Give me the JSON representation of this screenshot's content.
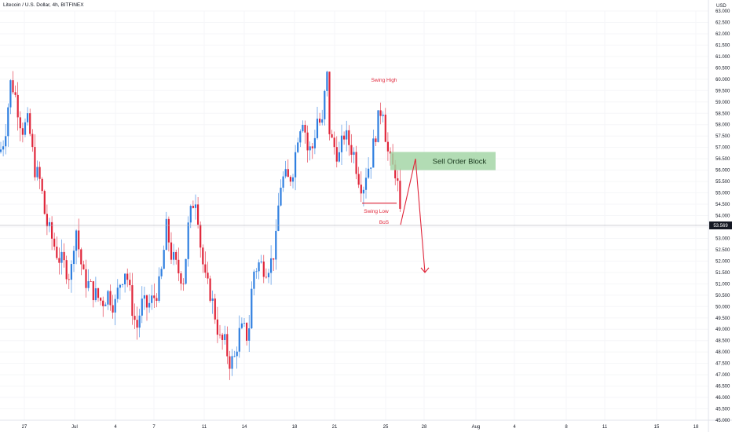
{
  "header": {
    "title": "Litecoin / U.S. Dollar, 4h, BITFINEX"
  },
  "chart_data": {
    "type": "candlestick",
    "y_axis": {
      "unit": "USD",
      "min": 45.0,
      "max": 63.0,
      "step": 0.5,
      "tick_labels": [
        "45.000",
        "45.500",
        "46.000",
        "46.500",
        "47.000",
        "47.500",
        "48.000",
        "48.500",
        "49.000",
        "49.500",
        "50.000",
        "50.500",
        "51.000",
        "51.500",
        "52.000",
        "52.500",
        "53.000",
        "53.500",
        "54.000",
        "54.500",
        "55.000",
        "55.500",
        "56.000",
        "56.500",
        "57.000",
        "57.500",
        "58.000",
        "58.500",
        "59.000",
        "59.500",
        "60.000",
        "60.500",
        "61.000",
        "61.500",
        "62.000",
        "62.500",
        "63.000"
      ]
    },
    "x_axis": {
      "tick_labels": [
        "27",
        "Jul",
        "4",
        "7",
        "11",
        "14",
        "18",
        "21",
        "25",
        "28",
        "Aug",
        "4",
        "8",
        "11",
        "15",
        "18"
      ]
    },
    "last_price": {
      "label": "53.569",
      "value": 53.569,
      "color": "#131722"
    },
    "colors": {
      "up": "#2f7fe0",
      "down": "#e0263a",
      "zone": "#a5d6a7",
      "arrow": "#e0263a",
      "annotation": "#e0263a"
    },
    "annotations": {
      "swing_high": "Swing High",
      "swing_low": "Swing Low",
      "bos": "BoS",
      "order_block": "Sell Order Block"
    },
    "order_block_zone": {
      "low": 56.0,
      "high": 56.8
    },
    "swing_low_level": 54.55,
    "projection": {
      "points": [
        53.6,
        56.5,
        51.5
      ]
    },
    "candles": []
  }
}
